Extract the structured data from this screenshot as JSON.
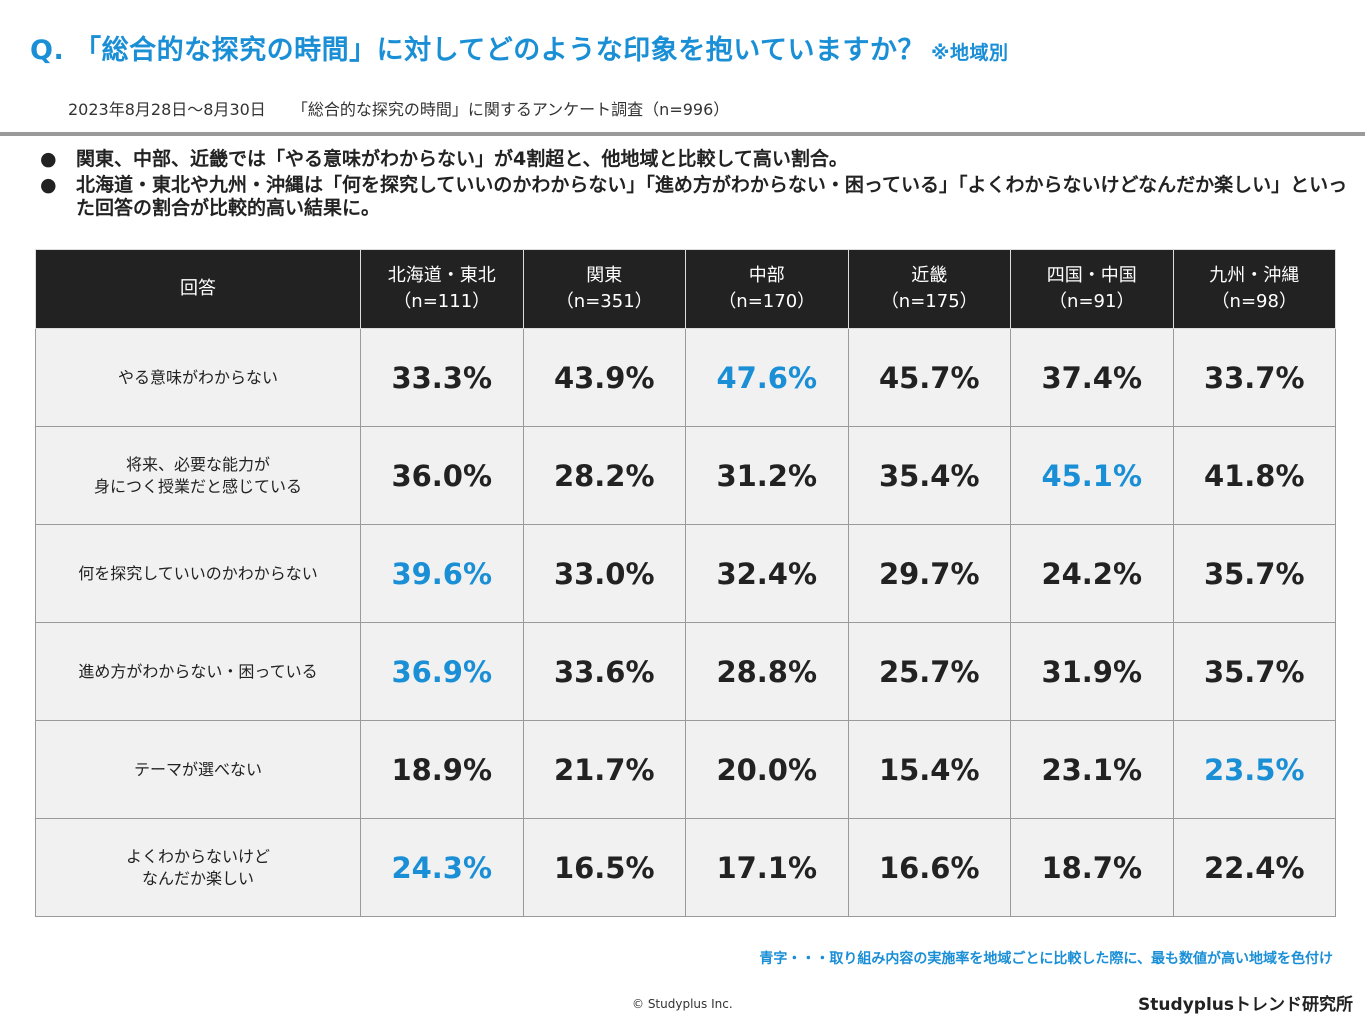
{
  "header": {
    "title": "Q. 「総合的な探究の時間」に対してどのような印象を抱いていますか？",
    "title_note": "※地域別",
    "survey_period": "2023年8月28日～8月30日",
    "survey_name": "「総合的な探究の時間」に関するアンケート調査（n=996）"
  },
  "bullets": [
    "関東、中部、近畿では「やる意味がわからない」が4割超と、他地域と比較して高い割合。",
    "北海道・東北や九州・沖縄は「何を探究していいのかわからない」「進め方がわからない・困っている」「よくわからないけどなんだか楽しい」といった回答の割合が比較的高い結果に。"
  ],
  "bullet_symbol": "●",
  "table": {
    "answer_header": "回答",
    "regions": [
      {
        "name": "北海道・東北",
        "n": "（n=111）"
      },
      {
        "name": "関東",
        "n": "（n=351）"
      },
      {
        "name": "中部",
        "n": "（n=170）"
      },
      {
        "name": "近畿",
        "n": "（n=175）"
      },
      {
        "name": "四国・中国",
        "n": "（n=91）"
      },
      {
        "name": "九州・沖縄",
        "n": "（n=98）"
      }
    ],
    "rows": [
      {
        "label": [
          "やる意味がわからない"
        ],
        "values": [
          "33.3%",
          "43.9%",
          "47.6%",
          "45.7%",
          "37.4%",
          "33.7%"
        ],
        "highlight": 2
      },
      {
        "label": [
          "将来、必要な能力が",
          "身につく授業だと感じている"
        ],
        "values": [
          "36.0%",
          "28.2%",
          "31.2%",
          "35.4%",
          "45.1%",
          "41.8%"
        ],
        "highlight": 4
      },
      {
        "label": [
          "何を探究していいのかわからない"
        ],
        "values": [
          "39.6%",
          "33.0%",
          "32.4%",
          "29.7%",
          "24.2%",
          "35.7%"
        ],
        "highlight": 0
      },
      {
        "label": [
          "進め方がわからない・困っている"
        ],
        "values": [
          "36.9%",
          "33.6%",
          "28.8%",
          "25.7%",
          "31.9%",
          "35.7%"
        ],
        "highlight": 0
      },
      {
        "label": [
          "テーマが選べない"
        ],
        "values": [
          "18.9%",
          "21.7%",
          "20.0%",
          "15.4%",
          "23.1%",
          "23.5%"
        ],
        "highlight": 5
      },
      {
        "label": [
          "よくわからないけど",
          "なんだか楽しい"
        ],
        "values": [
          "24.3%",
          "16.5%",
          "17.1%",
          "16.6%",
          "18.7%",
          "22.4%"
        ],
        "highlight": 0
      }
    ]
  },
  "footnote": "青字・・・取り組み内容の実施率を地域ごとに比較した際に、最も数値が高い地域を色付け",
  "copyright": "© Studyplus Inc.",
  "brand": "Studyplusトレンド研究所",
  "colors": {
    "accent_blue": "#1a8fd6",
    "header_bg": "#222222",
    "cell_bg": "#f1f1f1",
    "rule_gray": "#9a9a9a"
  }
}
